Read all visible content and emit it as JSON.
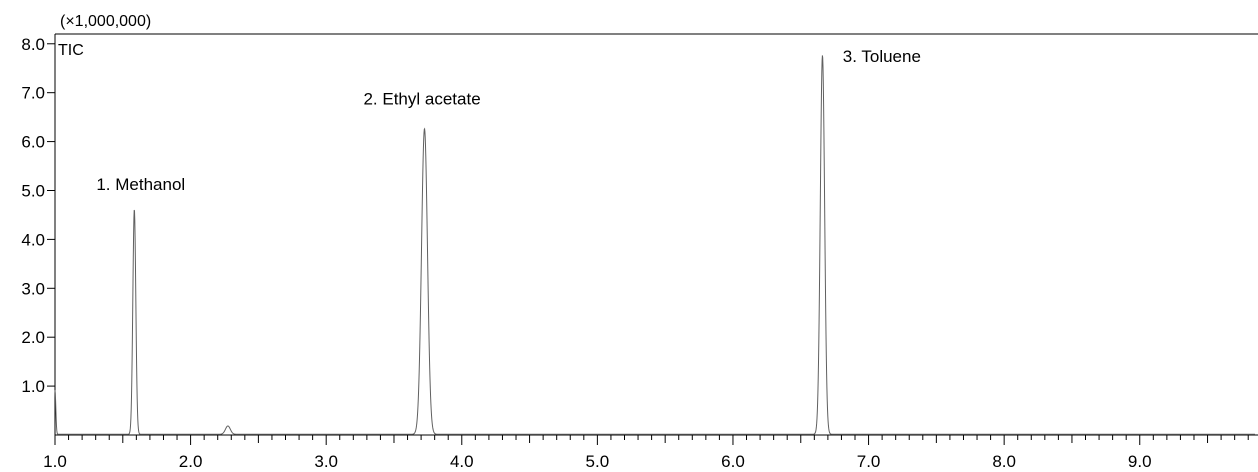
{
  "chart_data": {
    "type": "line",
    "y_multiplier_label": "(×1,000,000)",
    "signal_label": "TIC",
    "xlabel": "",
    "ylabel": "",
    "xlim": [
      1.0,
      9.85
    ],
    "ylim": [
      0,
      8.2
    ],
    "x_ticks": [
      1.0,
      2.0,
      3.0,
      4.0,
      5.0,
      6.0,
      7.0,
      8.0,
      9.0
    ],
    "x_tick_labels": [
      "1.0",
      "2.0",
      "3.0",
      "4.0",
      "5.0",
      "6.0",
      "7.0",
      "8.0",
      "9.0"
    ],
    "y_ticks": [
      1.0,
      2.0,
      3.0,
      4.0,
      5.0,
      6.0,
      7.0,
      8.0
    ],
    "y_tick_labels": [
      "1.0",
      "2.0",
      "3.0",
      "4.0",
      "5.0",
      "6.0",
      "7.0",
      "8.0"
    ],
    "grid": false,
    "legend": "none",
    "line_color": "#606060",
    "peaks": [
      {
        "label": "1.  Methanol",
        "x": 1.585,
        "y": 4.6,
        "width": 0.011
      },
      {
        "label": "2. Ethyl acetate",
        "x": 3.725,
        "y": 6.25,
        "width": 0.022
      },
      {
        "label": "3. Toluene",
        "x": 6.66,
        "y": 7.75,
        "width": 0.016
      }
    ],
    "minor_peaks": [
      {
        "x": 2.275,
        "y": 0.17,
        "width": 0.018
      }
    ],
    "label_anchor_offsets_x": [
      -0.28,
      -0.45,
      0.15
    ]
  }
}
